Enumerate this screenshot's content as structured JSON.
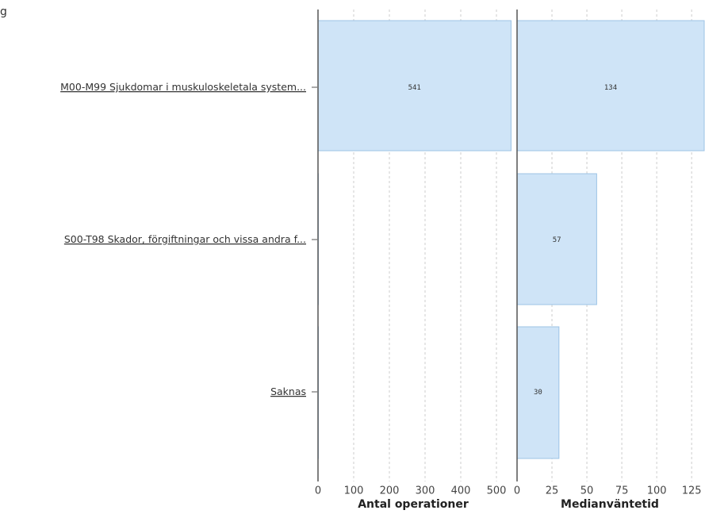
{
  "top_fragment": "g",
  "chart_data": [
    {
      "type": "bar",
      "orientation": "horizontal",
      "categories": [
        "M00-M99 Sjukdomar i muskuloskeletala system...",
        "S00-T98 Skador, förgiftningar och vissa andra f...",
        "Saknas"
      ],
      "values": [
        541,
        1,
        1
      ],
      "data_labels": [
        "541",
        "",
        ""
      ],
      "xlabel": "Antal operationer",
      "xlim": [
        0,
        560
      ],
      "ticks": [
        0,
        100,
        200,
        300,
        400,
        500
      ],
      "tick_labels": [
        "0",
        "100",
        "200",
        "300",
        "400",
        "500"
      ],
      "grid": true
    },
    {
      "type": "bar",
      "orientation": "horizontal",
      "categories": [
        "M00-M99 Sjukdomar i muskuloskeletala system...",
        "S00-T98 Skador, förgiftningar och vissa andra f...",
        "Saknas"
      ],
      "values": [
        134,
        57,
        30
      ],
      "data_labels": [
        "134",
        "57",
        "30"
      ],
      "xlabel": "Medianväntetid",
      "xlim": [
        0,
        134
      ],
      "ticks": [
        0,
        25,
        50,
        75,
        100,
        125
      ],
      "tick_labels": [
        "0",
        "25",
        "50",
        "75",
        "100",
        "125"
      ],
      "grid": true
    }
  ],
  "colors": {
    "bar_fill": "#cfe4f7",
    "bar_stroke": "#9cc3e6",
    "axis": "#555555",
    "grid": "#cccccc"
  }
}
